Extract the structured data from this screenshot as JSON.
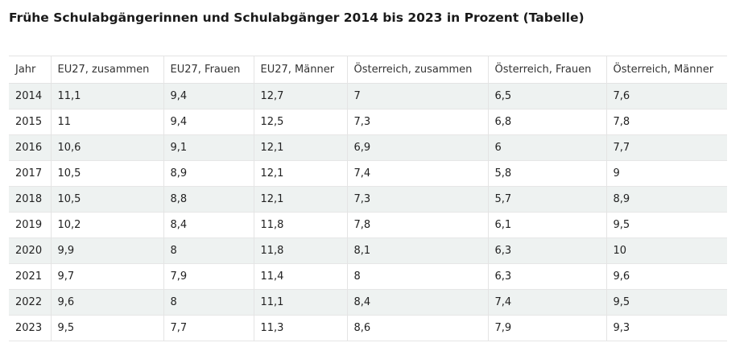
{
  "title": "Frühe Schulabgängerinnen und Schulabgänger 2014 bis 2023 in Prozent (Tabelle)",
  "table": {
    "columns": [
      "Jahr",
      "EU27, zusammen",
      "EU27, Frauen",
      "EU27, Männer",
      "Österreich, zusammen",
      "Österreich, Frauen",
      "Österreich, Männer"
    ],
    "rows": [
      [
        "2014",
        "11,1",
        "9,4",
        "12,7",
        "7",
        "6,5",
        "7,6"
      ],
      [
        "2015",
        "11",
        "9,4",
        "12,5",
        "7,3",
        "6,8",
        "7,8"
      ],
      [
        "2016",
        "10,6",
        "9,1",
        "12,1",
        "6,9",
        "6",
        "7,7"
      ],
      [
        "2017",
        "10,5",
        "8,9",
        "12,1",
        "7,4",
        "5,8",
        "9"
      ],
      [
        "2018",
        "10,5",
        "8,8",
        "12,1",
        "7,3",
        "5,7",
        "8,9"
      ],
      [
        "2019",
        "10,2",
        "8,4",
        "11,8",
        "7,8",
        "6,1",
        "9,5"
      ],
      [
        "2020",
        "9,9",
        "8",
        "11,8",
        "8,1",
        "6,3",
        "10"
      ],
      [
        "2021",
        "9,7",
        "7,9",
        "11,4",
        "8",
        "6,3",
        "9,6"
      ],
      [
        "2022",
        "9,6",
        "8",
        "11,1",
        "8,4",
        "7,4",
        "9,5"
      ],
      [
        "2023",
        "9,5",
        "7,7",
        "11,3",
        "8,6",
        "7,9",
        "9,3"
      ]
    ]
  }
}
